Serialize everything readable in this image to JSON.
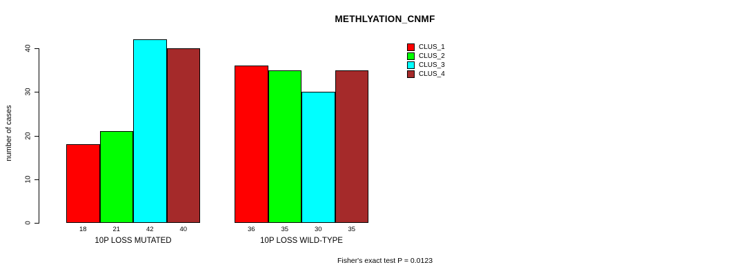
{
  "title": "METHLYATION_CNMF",
  "y_axis": {
    "label": "number of cases",
    "ticks": [
      "0",
      "10",
      "20",
      "30",
      "40"
    ]
  },
  "groups": [
    {
      "label": "10P LOSS MUTATED",
      "values": [
        18,
        21,
        42,
        40
      ]
    },
    {
      "label": "10P LOSS WILD-TYPE",
      "values": [
        36,
        35,
        30,
        35
      ]
    }
  ],
  "legend": {
    "items": [
      {
        "label": "CLUS_1",
        "color": "#FF0000"
      },
      {
        "label": "CLUS_2",
        "color": "#00FF00"
      },
      {
        "label": "CLUS_3",
        "color": "#00FFFF"
      },
      {
        "label": "CLUS_4",
        "color": "#A52A2A"
      }
    ]
  },
  "footer": "Fisher's exact test P = 0.0123",
  "chart_data": {
    "type": "bar",
    "title": "METHLYATION_CNMF",
    "xlabel": "",
    "ylabel": "number of cases",
    "categories": [
      "10P LOSS MUTATED",
      "10P LOSS WILD-TYPE"
    ],
    "series": [
      {
        "name": "CLUS_1",
        "color": "#FF0000",
        "values": [
          18,
          36
        ]
      },
      {
        "name": "CLUS_2",
        "color": "#00FF00",
        "values": [
          21,
          35
        ]
      },
      {
        "name": "CLUS_3",
        "color": "#00FFFF",
        "values": [
          42,
          30
        ]
      },
      {
        "name": "CLUS_4",
        "color": "#A52A2A",
        "values": [
          40,
          35
        ]
      }
    ],
    "ylim": [
      0,
      42
    ],
    "yticks": [
      0,
      10,
      20,
      30,
      40
    ],
    "bar_value_labels": true,
    "grid": false,
    "legend_position": "top-right",
    "annotation": "Fisher's exact test P = 0.0123"
  }
}
